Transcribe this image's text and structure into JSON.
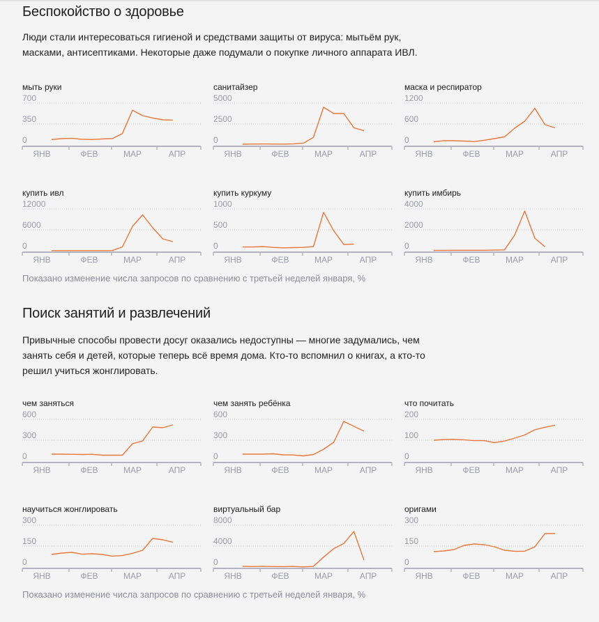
{
  "colors": {
    "accent": "#e8773c",
    "footnote": "#8c8c99",
    "background": "#f4f4f4"
  },
  "sections": [
    {
      "title": "Беспокойство о здоровье",
      "description": "Люди стали интересоваться гигиеной и средствами защиты от вируса: мытьём рук, масками, антисептиками. Некоторые даже подумали о покупке личного аппарата ИВЛ.",
      "footnote": "Показано изменение числа запросов по сравнению с третьей неделей января, %"
    },
    {
      "title": "Поиск занятий и развлечений",
      "description": "Привычные способы провести досуг оказались недоступны — многие задумались, чем занять себя и детей, которые теперь всё время дома. Кто-то вспомнил о книгах, а кто-то решил учиться жонглировать.",
      "footnote": "Показано изменение числа запросов по сравнению с третьей неделей января, %"
    }
  ],
  "chart_data": [
    {
      "type": "line",
      "title": "мыть руки",
      "yticks": [
        0,
        350,
        700
      ],
      "ylim": [
        0,
        700
      ],
      "categories": [
        "ЯНВ",
        "ФЕВ",
        "МАР",
        "АПР"
      ],
      "series": [
        {
          "name": "мыть руки",
          "values": [
            90,
            105,
            110,
            95,
            90,
            100,
            105,
            190,
            580,
            490,
            450,
            420,
            415
          ]
        }
      ]
    },
    {
      "type": "line",
      "title": "санитайзер",
      "yticks": [
        0,
        2500,
        5000
      ],
      "ylim": [
        0,
        5000
      ],
      "categories": [
        "ЯНВ",
        "ФЕВ",
        "МАР",
        "АПР"
      ],
      "series": [
        {
          "name": "санитайзер",
          "values": [
            80,
            100,
            110,
            100,
            95,
            120,
            200,
            900,
            4500,
            3750,
            3750,
            2050,
            1700
          ]
        }
      ]
    },
    {
      "type": "line",
      "title": "маска и респиратор",
      "yticks": [
        0,
        600,
        1200
      ],
      "ylim": [
        0,
        1200
      ],
      "categories": [
        "ЯНВ",
        "ФЕВ",
        "МАР",
        "АПР"
      ],
      "series": [
        {
          "name": "маска и респиратор",
          "values": [
            90,
            120,
            120,
            110,
            95,
            135,
            180,
            230,
            480,
            680,
            1050,
            580,
            490
          ]
        }
      ]
    },
    {
      "type": "line",
      "title": "купить ивл",
      "yticks": [
        0,
        6000,
        12000
      ],
      "ylim": [
        0,
        12000
      ],
      "categories": [
        "ЯНВ",
        "ФЕВ",
        "МАР",
        "АПР"
      ],
      "series": [
        {
          "name": "купить ивл",
          "values": [
            40,
            40,
            50,
            40,
            40,
            50,
            60,
            1100,
            7000,
            10300,
            6600,
            3400,
            2600
          ]
        }
      ]
    },
    {
      "type": "line",
      "title": "купить куркуму",
      "yticks": [
        0,
        500,
        1000
      ],
      "ylim": [
        0,
        1000
      ],
      "categories": [
        "ЯНВ",
        "ФЕВ",
        "МАР",
        "АПР"
      ],
      "series": [
        {
          "name": "купить куркуму",
          "values": [
            90,
            90,
            100,
            80,
            70,
            75,
            80,
            100,
            920,
            480,
            150,
            160
          ]
        }
      ]
    },
    {
      "type": "line",
      "title": "купить имбирь",
      "yticks": [
        0,
        2000,
        4000
      ],
      "ylim": [
        0,
        4000
      ],
      "categories": [
        "ЯНВ",
        "ФЕВ",
        "МАР",
        "АПР"
      ],
      "series": [
        {
          "name": "купить имбирь",
          "values": [
            40,
            40,
            45,
            45,
            45,
            50,
            60,
            80,
            1500,
            3800,
            1200,
            380
          ]
        }
      ]
    }
  ],
  "chart_data_2": []
}
